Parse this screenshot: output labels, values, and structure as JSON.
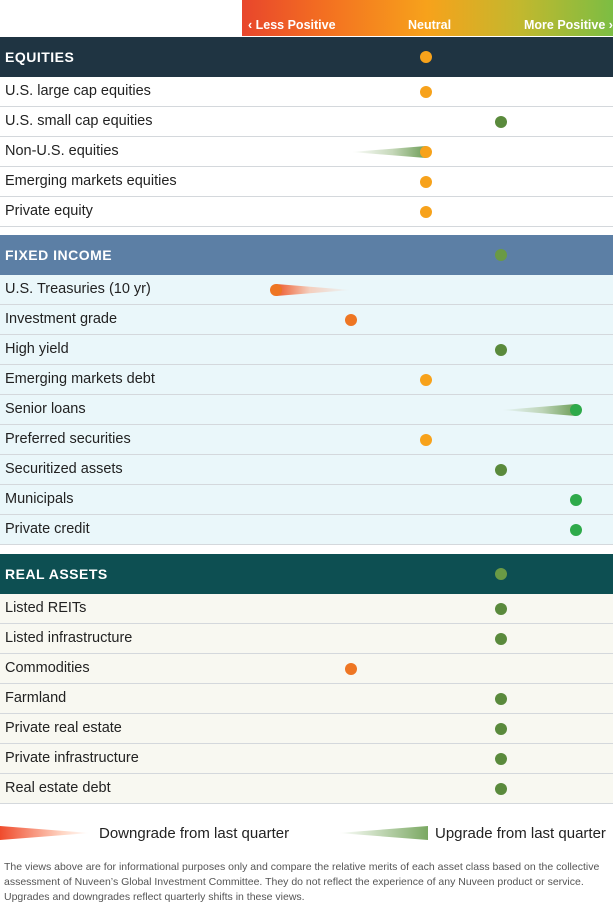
{
  "scale": {
    "less_positive": "‹  Less Positive",
    "neutral": "Neutral",
    "more_positive": "More Positive  ›"
  },
  "colors": {
    "equities_header": "#1f3442",
    "equities_row": "#ffffff",
    "fixed_income_header": "#5c7fa5",
    "fixed_income_row": "#eaf7fa",
    "real_assets_header": "#0d4f52",
    "real_assets_row": "#f8f8f1",
    "less_positive_dot": "#ee7623",
    "neutral_dot": "#f7a21b",
    "positive_dot": "#5a8a3c",
    "more_positive_dot": "#2eaa4a"
  },
  "chart_data": {
    "type": "table",
    "scale_levels": [
      "Less Positive",
      "Neutral",
      "More Positive"
    ],
    "scale_range": [
      -2,
      2
    ],
    "sections": [
      {
        "name": "EQUITIES",
        "value": 0,
        "rows": [
          {
            "label": "U.S. large cap equities",
            "value": 0
          },
          {
            "label": "U.S. small cap equities",
            "value": 1
          },
          {
            "label": "Non-U.S. equities",
            "value": 0,
            "prev": -1,
            "change": "upgrade"
          },
          {
            "label": "Emerging markets equities",
            "value": 0
          },
          {
            "label": "Private equity",
            "value": 0
          }
        ]
      },
      {
        "name": "FIXED INCOME",
        "value": 1,
        "rows": [
          {
            "label": "U.S. Treasuries (10 yr)",
            "value": -2,
            "prev": -1,
            "change": "downgrade"
          },
          {
            "label": "Investment grade",
            "value": -1
          },
          {
            "label": "High yield",
            "value": 1
          },
          {
            "label": "Emerging markets debt",
            "value": 0
          },
          {
            "label": "Senior loans",
            "value": 2,
            "prev": 1,
            "change": "upgrade"
          },
          {
            "label": "Preferred securities",
            "value": 0
          },
          {
            "label": "Securitized assets",
            "value": 1
          },
          {
            "label": "Municipals",
            "value": 2
          },
          {
            "label": "Private credit",
            "value": 2
          }
        ]
      },
      {
        "name": "REAL ASSETS",
        "value": 1,
        "rows": [
          {
            "label": "Listed REITs",
            "value": 1
          },
          {
            "label": "Listed infrastructure",
            "value": 1
          },
          {
            "label": "Commodities",
            "value": -1
          },
          {
            "label": "Farmland",
            "value": 1
          },
          {
            "label": "Private real estate",
            "value": 1
          },
          {
            "label": "Private infrastructure",
            "value": 1
          },
          {
            "label": "Real estate debt",
            "value": 1
          }
        ]
      }
    ]
  },
  "legend": {
    "downgrade": "Downgrade from last quarter",
    "upgrade": "Upgrade from last quarter"
  },
  "footnote": "The views above are for informational purposes only and compare the relative merits of each asset class based on the collective assessment of Nuveen’s Global Investment Committee. They do not reflect the experience of any Nuveen product or service. Upgrades and downgrades reflect quarterly shifts in these views."
}
